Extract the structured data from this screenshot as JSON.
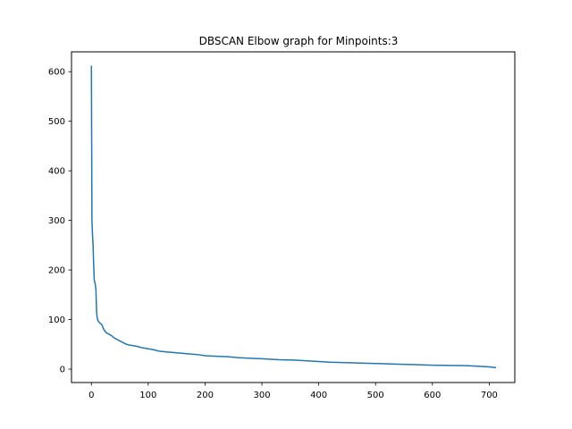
{
  "chart_data": {
    "type": "line",
    "title": "DBSCAN Elbow graph for Minpoints:3",
    "xlabel": "",
    "ylabel": "",
    "xlim": [
      -35,
      745
    ],
    "ylim": [
      -27,
      640
    ],
    "xticks": [
      0,
      100,
      200,
      300,
      400,
      500,
      600,
      700
    ],
    "yticks": [
      0,
      100,
      200,
      300,
      400,
      500,
      600
    ],
    "grid": false,
    "line_color": "#1f77b4",
    "series": [
      {
        "x": [
          0,
          1,
          2,
          3,
          4,
          5,
          7,
          8,
          9,
          10,
          11,
          12,
          15,
          18,
          20,
          22,
          25,
          28,
          32,
          36,
          40,
          45,
          50,
          55,
          60,
          65,
          70,
          80,
          90,
          100,
          110,
          120,
          130,
          150,
          170,
          190,
          200,
          220,
          240,
          260,
          280,
          300,
          330,
          360,
          390,
          420,
          450,
          480,
          510,
          540,
          570,
          600,
          630,
          660,
          680,
          700,
          712
        ],
        "y": [
          612,
          300,
          270,
          250,
          210,
          180,
          170,
          160,
          120,
          105,
          100,
          97,
          93,
          90,
          85,
          80,
          75,
          72,
          70,
          67,
          63,
          60,
          57,
          54,
          51,
          49,
          48,
          46,
          43,
          41,
          39,
          36,
          35,
          33,
          31,
          29,
          27,
          26,
          25,
          23,
          22,
          21,
          19,
          18,
          16,
          14,
          13,
          12,
          11,
          10,
          9,
          8,
          7.5,
          7,
          6,
          4.5,
          3
        ]
      }
    ]
  }
}
